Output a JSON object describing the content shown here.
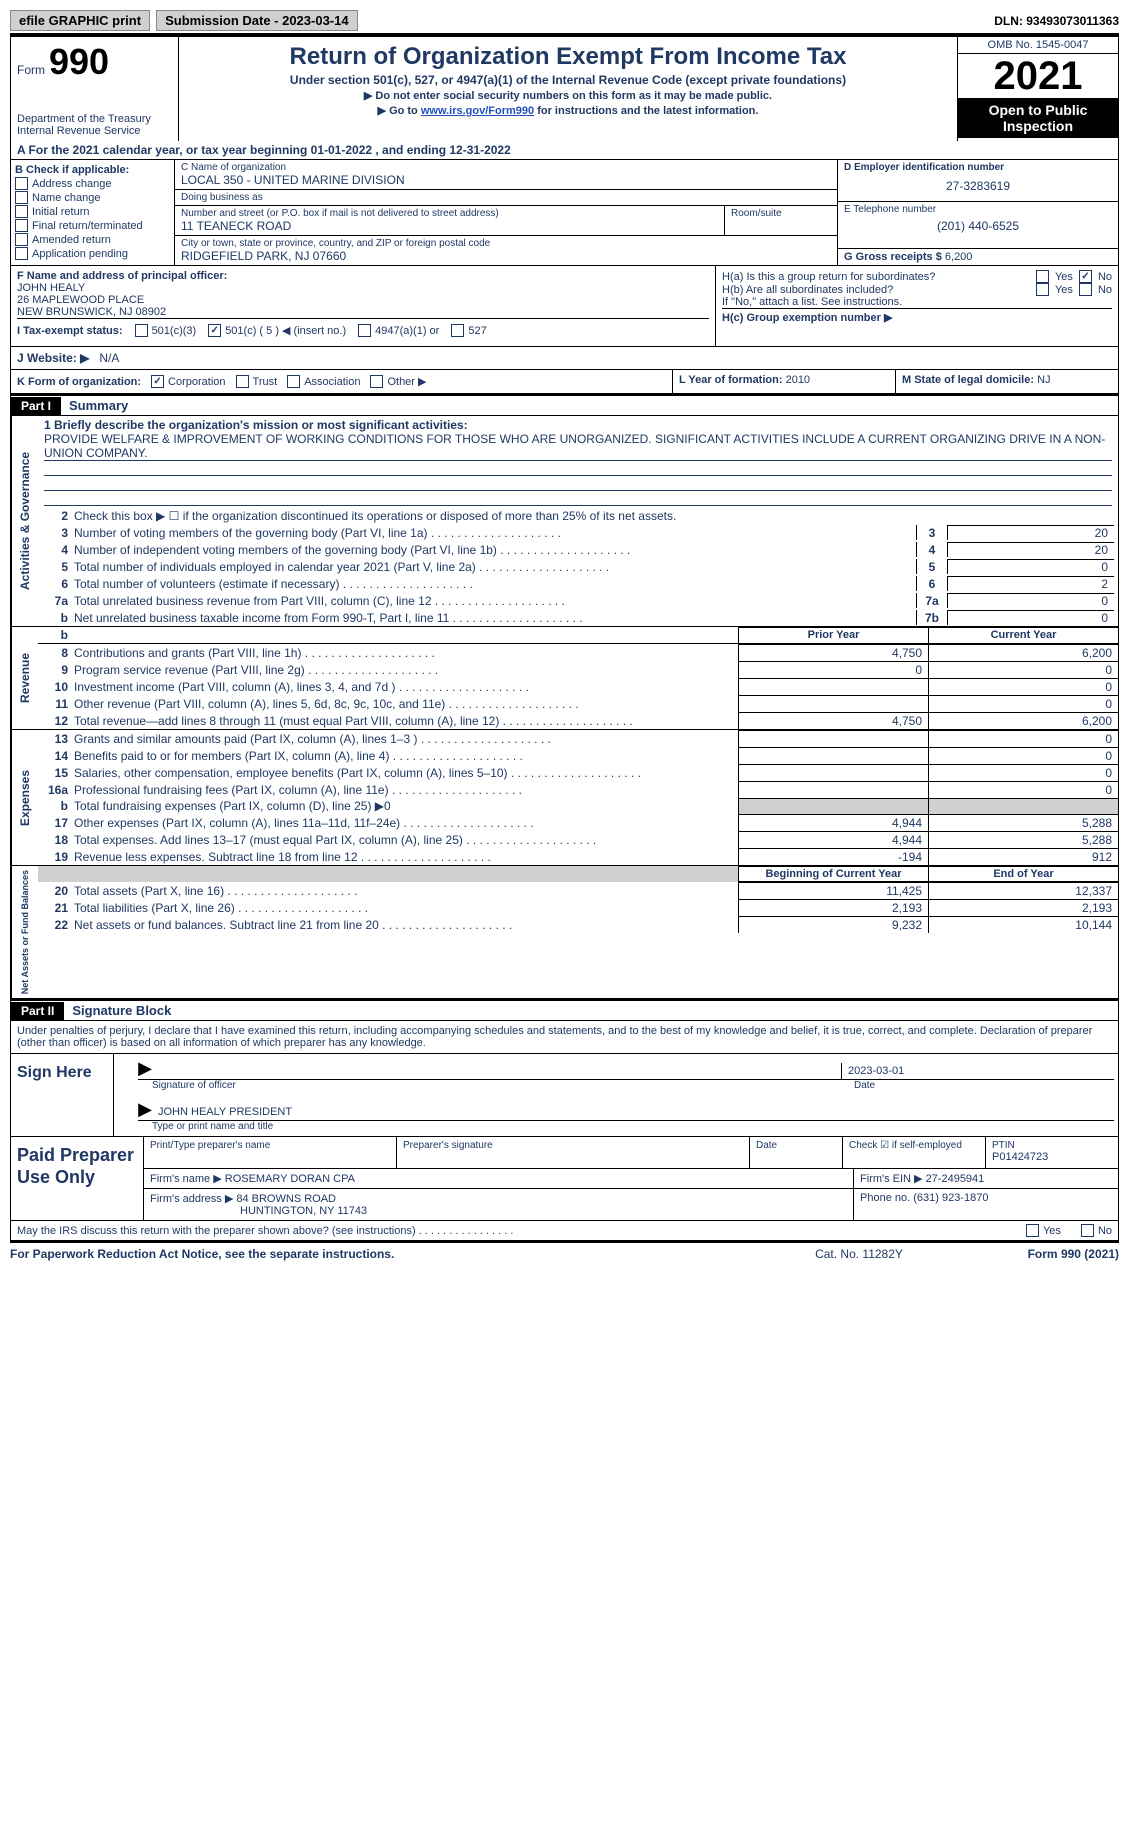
{
  "topbar": {
    "efile": "efile GRAPHIC print",
    "submission": "Submission Date - 2023-03-14",
    "dln": "DLN: 93493073011363"
  },
  "header": {
    "form_label": "Form",
    "form_num": "990",
    "dept": "Department of the Treasury",
    "irs": "Internal Revenue Service",
    "title": "Return of Organization Exempt From Income Tax",
    "subtitle": "Under section 501(c), 527, or 4947(a)(1) of the Internal Revenue Code (except private foundations)",
    "note1": "▶ Do not enter social security numbers on this form as it may be made public.",
    "note2_pre": "▶ Go to ",
    "note2_link": "www.irs.gov/Form990",
    "note2_post": " for instructions and the latest information.",
    "omb": "OMB No. 1545-0047",
    "year": "2021",
    "inspection": "Open to Public Inspection"
  },
  "row_a": "A For the 2021 calendar year, or tax year beginning 01-01-2022   , and ending 12-31-2022",
  "col_b": {
    "header": "B Check if applicable:",
    "items": [
      "Address change",
      "Name change",
      "Initial return",
      "Final return/terminated",
      "Amended return",
      "Application pending"
    ]
  },
  "col_c": {
    "name_label": "C Name of organization",
    "name": "LOCAL 350 - UNITED MARINE DIVISION",
    "dba_label": "Doing business as",
    "dba": "",
    "street_label": "Number and street (or P.O. box if mail is not delivered to street address)",
    "street": "11 TEANECK ROAD",
    "room_label": "Room/suite",
    "city_label": "City or town, state or province, country, and ZIP or foreign postal code",
    "city": "RIDGEFIELD PARK, NJ  07660"
  },
  "col_d": {
    "ein_label": "D Employer identification number",
    "ein": "27-3283619",
    "phone_label": "E Telephone number",
    "phone": "(201) 440-6525",
    "gross_label": "G Gross receipts $",
    "gross": "6,200"
  },
  "officer": {
    "label": "F Name and address of principal officer:",
    "name": "JOHN HEALY",
    "addr1": "26 MAPLEWOOD PLACE",
    "addr2": "NEW BRUNSWICK, NJ  08902"
  },
  "h": {
    "ha": "H(a)  Is this a group return for subordinates?",
    "hb": "H(b)  Are all subordinates included?",
    "hb_note": "If \"No,\" attach a list. See instructions.",
    "hc": "H(c)  Group exemption number ▶",
    "yes": "Yes",
    "no": "No"
  },
  "tax_status": {
    "label": "I  Tax-exempt status:",
    "c3": "501(c)(3)",
    "c": "501(c) ( 5 ) ◀ (insert no.)",
    "a1": "4947(a)(1) or",
    "527": "527"
  },
  "website": {
    "label": "J Website: ▶",
    "value": "N/A"
  },
  "k": {
    "label": "K Form of organization:",
    "corp": "Corporation",
    "trust": "Trust",
    "assoc": "Association",
    "other": "Other ▶"
  },
  "l": {
    "label": "L Year of formation:",
    "value": "2010"
  },
  "m": {
    "label": "M State of legal domicile:",
    "value": "NJ"
  },
  "part1": {
    "tag": "Part I",
    "title": "Summary"
  },
  "summary": {
    "mission_label": "1  Briefly describe the organization's mission or most significant activities:",
    "mission": "PROVIDE WELFARE & IMPROVEMENT OF WORKING CONDITIONS FOR THOSE WHO ARE UNORGANIZED. SIGNIFICANT ACTIVITIES INCLUDE A CURRENT ORGANIZING DRIVE IN A NON-UNION COMPANY.",
    "line2": "Check this box ▶ ☐  if the organization discontinued its operations or disposed of more than 25% of its net assets.",
    "vtab_ag": "Activities & Governance",
    "vtab_rev": "Revenue",
    "vtab_exp": "Expenses",
    "vtab_net": "Net Assets or Fund Balances",
    "lines_ag": [
      {
        "n": "3",
        "d": "Number of voting members of the governing body (Part VI, line 1a)",
        "c": "3",
        "v": "20"
      },
      {
        "n": "4",
        "d": "Number of independent voting members of the governing body (Part VI, line 1b)",
        "c": "4",
        "v": "20"
      },
      {
        "n": "5",
        "d": "Total number of individuals employed in calendar year 2021 (Part V, line 2a)",
        "c": "5",
        "v": "0"
      },
      {
        "n": "6",
        "d": "Total number of volunteers (estimate if necessary)",
        "c": "6",
        "v": "2"
      },
      {
        "n": "7a",
        "d": "Total unrelated business revenue from Part VIII, column (C), line 12",
        "c": "7a",
        "v": "0"
      },
      {
        "n": "b",
        "d": "Net unrelated business taxable income from Form 990-T, Part I, line 11",
        "c": "7b",
        "v": "0"
      }
    ],
    "prior_hdr": "Prior Year",
    "current_hdr": "Current Year",
    "begin_hdr": "Beginning of Current Year",
    "end_hdr": "End of Year",
    "rev": [
      {
        "n": "8",
        "d": "Contributions and grants (Part VIII, line 1h)",
        "p": "4,750",
        "c": "6,200"
      },
      {
        "n": "9",
        "d": "Program service revenue (Part VIII, line 2g)",
        "p": "0",
        "c": "0"
      },
      {
        "n": "10",
        "d": "Investment income (Part VIII, column (A), lines 3, 4, and 7d )",
        "p": "",
        "c": "0"
      },
      {
        "n": "11",
        "d": "Other revenue (Part VIII, column (A), lines 5, 6d, 8c, 9c, 10c, and 11e)",
        "p": "",
        "c": "0"
      },
      {
        "n": "12",
        "d": "Total revenue—add lines 8 through 11 (must equal Part VIII, column (A), line 12)",
        "p": "4,750",
        "c": "6,200"
      }
    ],
    "exp": [
      {
        "n": "13",
        "d": "Grants and similar amounts paid (Part IX, column (A), lines 1–3 )",
        "p": "",
        "c": "0"
      },
      {
        "n": "14",
        "d": "Benefits paid to or for members (Part IX, column (A), line 4)",
        "p": "",
        "c": "0"
      },
      {
        "n": "15",
        "d": "Salaries, other compensation, employee benefits (Part IX, column (A), lines 5–10)",
        "p": "",
        "c": "0"
      },
      {
        "n": "16a",
        "d": "Professional fundraising fees (Part IX, column (A), line 11e)",
        "p": "",
        "c": "0"
      },
      {
        "n": "b",
        "d": "Total fundraising expenses (Part IX, column (D), line 25) ▶0",
        "p": "grey",
        "c": "grey"
      },
      {
        "n": "17",
        "d": "Other expenses (Part IX, column (A), lines 11a–11d, 11f–24e)",
        "p": "4,944",
        "c": "5,288"
      },
      {
        "n": "18",
        "d": "Total expenses. Add lines 13–17 (must equal Part IX, column (A), line 25)",
        "p": "4,944",
        "c": "5,288"
      },
      {
        "n": "19",
        "d": "Revenue less expenses. Subtract line 18 from line 12",
        "p": "-194",
        "c": "912"
      }
    ],
    "net": [
      {
        "n": "20",
        "d": "Total assets (Part X, line 16)",
        "p": "11,425",
        "c": "12,337"
      },
      {
        "n": "21",
        "d": "Total liabilities (Part X, line 26)",
        "p": "2,193",
        "c": "2,193"
      },
      {
        "n": "22",
        "d": "Net assets or fund balances. Subtract line 21 from line 20",
        "p": "9,232",
        "c": "10,144"
      }
    ]
  },
  "part2": {
    "tag": "Part II",
    "title": "Signature Block"
  },
  "sig": {
    "declaration": "Under penalties of perjury, I declare that I have examined this return, including accompanying schedules and statements, and to the best of my knowledge and belief, it is true, correct, and complete. Declaration of preparer (other than officer) is based on all information of which preparer has any knowledge.",
    "sign_here": "Sign Here",
    "sig_of_officer": "Signature of officer",
    "date_label": "Date",
    "date": "2023-03-01",
    "name_title": "JOHN HEALY  PRESIDENT",
    "type_label": "Type or print name and title"
  },
  "prep": {
    "label": "Paid Preparer Use Only",
    "print_label": "Print/Type preparer's name",
    "sig_label": "Preparer's signature",
    "date_label": "Date",
    "check_label": "Check ☑ if self-employed",
    "ptin_label": "PTIN",
    "ptin": "P01424723",
    "firm_name_label": "Firm's name    ▶",
    "firm_name": "ROSEMARY DORAN CPA",
    "firm_ein_label": "Firm's EIN ▶",
    "firm_ein": "27-2495941",
    "firm_addr_label": "Firm's address ▶",
    "firm_addr1": "84 BROWNS ROAD",
    "firm_addr2": "HUNTINGTON, NY  11743",
    "phone_label": "Phone no.",
    "phone": "(631) 923-1870"
  },
  "footer": {
    "discuss": "May the IRS discuss this return with the preparer shown above? (see instructions)",
    "yes": "Yes",
    "no": "No",
    "paperwork": "For Paperwork Reduction Act Notice, see the separate instructions.",
    "cat": "Cat. No. 11282Y",
    "form": "Form 990 (2021)"
  }
}
